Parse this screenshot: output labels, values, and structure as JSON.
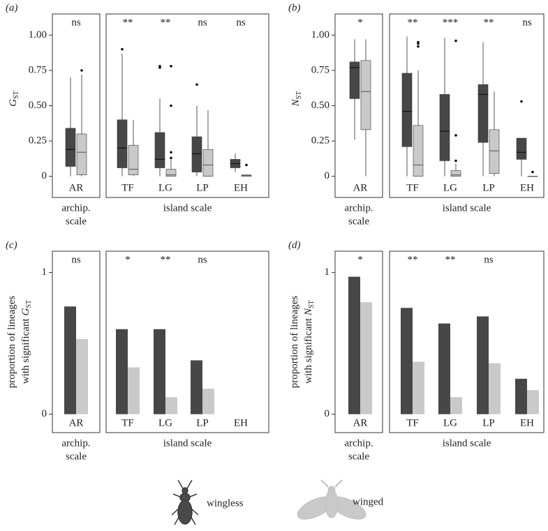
{
  "chart_data": [
    {
      "type": "box",
      "panel_label": "(a)",
      "ylabel": {
        "symbol": "G",
        "subscript": "ST"
      },
      "categories": [
        "AR",
        "TF",
        "LG",
        "LP",
        "EH"
      ],
      "group_labels": [
        [
          "archip.",
          "scale"
        ],
        [
          "island scale"
        ]
      ],
      "significance": [
        "ns",
        "**",
        "**",
        "ns",
        "ns"
      ],
      "ylim": [
        -0.15,
        1.15
      ],
      "yticks": [
        0,
        0.25,
        {
          "value": 0.5,
          "label": "0.50"
        },
        0.75,
        {
          "value": 1,
          "label": "1.00"
        }
      ],
      "series": [
        {
          "name": "wingless",
          "color": "#474747",
          "values": [
            {
              "lo": 0,
              "q1": 0.07,
              "med": 0.19,
              "q3": 0.34,
              "hi": 0.7,
              "fliers": []
            },
            {
              "lo": 0,
              "q1": 0.06,
              "med": 0.2,
              "q3": 0.4,
              "hi": 0.87,
              "fliers": [
                0.9
              ]
            },
            {
              "lo": 0,
              "q1": 0.06,
              "med": 0.12,
              "q3": 0.31,
              "hi": 0.55,
              "fliers": [
                0.77,
                0.78
              ]
            },
            {
              "lo": 0,
              "q1": 0.03,
              "med": 0.16,
              "q3": 0.28,
              "hi": 0.5,
              "fliers": [
                0.65
              ]
            },
            {
              "lo": 0.03,
              "q1": 0.06,
              "med": 0.09,
              "q3": 0.12,
              "hi": 0.16,
              "fliers": []
            }
          ]
        },
        {
          "name": "winged",
          "color": "#c9c9c9",
          "values": [
            {
              "lo": 0,
              "q1": 0.01,
              "med": 0.17,
              "q3": 0.3,
              "hi": 0.72,
              "fliers": [
                0.75
              ]
            },
            {
              "lo": 0,
              "q1": 0.01,
              "med": 0.05,
              "q3": 0.22,
              "hi": 0.4,
              "fliers": []
            },
            {
              "lo": 0,
              "q1": 0,
              "med": 0.01,
              "q3": 0.05,
              "hi": 0.12,
              "fliers": [
                0.78,
                0.5,
                0.17,
                0.13
              ]
            },
            {
              "lo": 0,
              "q1": 0,
              "med": 0.08,
              "q3": 0.19,
              "hi": 0.47,
              "fliers": []
            },
            {
              "lo": 0,
              "q1": 0,
              "med": 0.005,
              "q3": 0.01,
              "hi": 0.01,
              "fliers": [
                0.08
              ]
            }
          ]
        }
      ]
    },
    {
      "type": "box",
      "panel_label": "(b)",
      "ylabel": {
        "symbol": "N",
        "subscript": "ST"
      },
      "categories": [
        "AR",
        "TF",
        "LG",
        "LP",
        "EH"
      ],
      "group_labels": [
        [
          "archip.",
          "scale"
        ],
        [
          "island scale"
        ]
      ],
      "significance": [
        "*",
        "**",
        "***",
        "**",
        "ns"
      ],
      "ylim": [
        -0.15,
        1.15
      ],
      "yticks": [
        0,
        0.25,
        {
          "value": 0.5,
          "label": "0.50"
        },
        0.75,
        {
          "value": 1,
          "label": "1.00"
        }
      ],
      "series": [
        {
          "name": "wingless",
          "color": "#474747",
          "values": [
            {
              "lo": 0.26,
              "q1": 0.55,
              "med": 0.77,
              "q3": 0.81,
              "hi": 0.97,
              "fliers": []
            },
            {
              "lo": 0,
              "q1": 0.21,
              "med": 0.46,
              "q3": 0.73,
              "hi": 0.99,
              "fliers": []
            },
            {
              "lo": 0,
              "q1": 0.11,
              "med": 0.32,
              "q3": 0.58,
              "hi": 0.98,
              "fliers": []
            },
            {
              "lo": 0,
              "q1": 0.24,
              "med": 0.58,
              "q3": 0.65,
              "hi": 0.95,
              "fliers": []
            },
            {
              "lo": 0,
              "q1": 0.12,
              "med": 0.17,
              "q3": 0.27,
              "hi": 0.27,
              "fliers": [
                0.53
              ]
            }
          ]
        },
        {
          "name": "winged",
          "color": "#c9c9c9",
          "values": [
            {
              "lo": 0,
              "q1": 0.33,
              "med": 0.6,
              "q3": 0.82,
              "hi": 0.97,
              "fliers": []
            },
            {
              "lo": 0,
              "q1": 0,
              "med": 0.08,
              "q3": 0.36,
              "hi": 0.75,
              "fliers": [
                0.92,
                0.94,
                0.95
              ]
            },
            {
              "lo": 0,
              "q1": 0,
              "med": 0.01,
              "q3": 0.04,
              "hi": 0.09,
              "fliers": [
                0.96,
                0.29,
                0.11
              ]
            },
            {
              "lo": 0,
              "q1": 0.02,
              "med": 0.18,
              "q3": 0.33,
              "hi": 0.6,
              "fliers": []
            },
            {
              "lo": 0,
              "q1": 0,
              "med": 0,
              "q3": 0,
              "hi": 0,
              "fliers": [
                0.03
              ]
            }
          ]
        }
      ]
    },
    {
      "type": "bar",
      "panel_label": "(c)",
      "ylabel": {
        "lines": [
          "proportion of lineages",
          "with significant"
        ],
        "symbol": "G",
        "subscript": "ST"
      },
      "categories": [
        "AR",
        "TF",
        "LG",
        "LP",
        "EH"
      ],
      "group_labels": [
        [
          "archip.",
          "scale"
        ],
        [
          "island scale"
        ]
      ],
      "significance": [
        "ns",
        "*",
        "**",
        "ns",
        null
      ],
      "ylim": [
        -0.13,
        1.15
      ],
      "yticks": [
        0,
        1
      ],
      "series": [
        {
          "name": "wingless",
          "color": "#474747",
          "values": [
            0.76,
            0.6,
            0.6,
            0.38,
            0
          ]
        },
        {
          "name": "winged",
          "color": "#c9c9c9",
          "values": [
            0.53,
            0.33,
            0.12,
            0.18,
            0
          ]
        }
      ]
    },
    {
      "type": "bar",
      "panel_label": "(d)",
      "ylabel": {
        "lines": [
          "proportion of lineages",
          "with significant"
        ],
        "symbol": "N",
        "subscript": "ST"
      },
      "categories": [
        "AR",
        "TF",
        "LG",
        "LP",
        "EH"
      ],
      "group_labels": [
        [
          "archip.",
          "scale"
        ],
        [
          "island scale"
        ]
      ],
      "significance": [
        "*",
        "**",
        "**",
        "ns",
        null
      ],
      "ylim": [
        -0.13,
        1.15
      ],
      "yticks": [
        0,
        1
      ],
      "series": [
        {
          "name": "wingless",
          "color": "#474747",
          "values": [
            0.97,
            0.75,
            0.64,
            0.69,
            0.25
          ]
        },
        {
          "name": "winged",
          "color": "#c9c9c9",
          "values": [
            0.79,
            0.37,
            0.12,
            0.36,
            0.17
          ]
        }
      ]
    }
  ]
}
